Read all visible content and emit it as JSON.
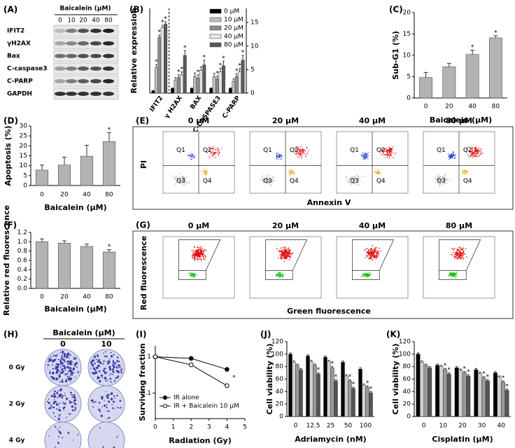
{
  "chart_data": [
    {
      "panel": "(B)",
      "type": "bar",
      "ylabel": "Relative expression",
      "categories": [
        "IFIT2",
        "γ H2AX",
        "BAX",
        "C-CASPASE3",
        "C-PARP"
      ],
      "axis_by_category": [
        "y",
        "y2",
        "y2",
        "y2",
        "y2"
      ],
      "ylim": [
        0,
        35
      ],
      "y2lim": [
        0,
        18
      ],
      "y2ticks": [
        0,
        5,
        10,
        15
      ],
      "legend": "upper right",
      "series": [
        {
          "name": "0 μM",
          "color": "#000000",
          "values": [
            1,
            1,
            1,
            1,
            1
          ],
          "errors": [
            0.1,
            0.1,
            0.1,
            0.1,
            0.1
          ]
        },
        {
          "name": "10 μM",
          "color": "#bdbdbd",
          "values": [
            10.5,
            2.8,
            3.5,
            3.5,
            2.5
          ],
          "errors": [
            1.2,
            0.5,
            0.8,
            0.7,
            0.5
          ],
          "sig": [
            "*",
            null,
            null,
            null,
            null
          ]
        },
        {
          "name": "20 μM",
          "color": "#8c8c8c",
          "values": [
            23,
            3.3,
            3.2,
            3,
            3.5
          ],
          "errors": [
            1,
            0.6,
            0.7,
            0.6,
            0.6
          ],
          "sig": [
            "*",
            "*",
            "*",
            "*",
            "*"
          ]
        },
        {
          "name": "40 μM",
          "color": "#e6e6e6",
          "values": [
            27,
            3.8,
            4.8,
            4.5,
            4.5
          ],
          "errors": [
            1,
            0.7,
            0.8,
            0.8,
            0.7
          ],
          "sig": [
            "*",
            "*",
            null,
            "*",
            "*"
          ]
        },
        {
          "name": "80 μM",
          "color": "#5a5a5a",
          "values": [
            28.5,
            8,
            6,
            5.8,
            7
          ],
          "errors": [
            1,
            1,
            1,
            1,
            1
          ],
          "sig": [
            "*",
            "*",
            "*",
            "*",
            "*"
          ]
        }
      ]
    },
    {
      "panel": "(C)",
      "type": "bar",
      "categories": [
        "0",
        "20",
        "40",
        "80"
      ],
      "values": [
        4.8,
        7.3,
        10.2,
        14.1
      ],
      "errors": [
        1.2,
        0.8,
        1.0,
        0.5
      ],
      "sig": [
        null,
        null,
        "*",
        "*"
      ],
      "color": "#b3b3b3",
      "ylim": [
        0,
        20
      ],
      "yticks": [
        0,
        5,
        10,
        15,
        20
      ],
      "xlabel": "Baicalein (μM)",
      "ylabel": "Sub-G1 (%)"
    },
    {
      "panel": "(D)",
      "type": "bar",
      "categories": [
        "0",
        "20",
        "40",
        "80"
      ],
      "values": [
        7.8,
        10.3,
        14.8,
        22.2
      ],
      "errors": [
        2.5,
        4,
        5.5,
        4.5
      ],
      "sig": [
        null,
        null,
        null,
        "*"
      ],
      "color": "#b3b3b3",
      "ylim": [
        0,
        30
      ],
      "yticks": [
        0,
        5,
        10,
        15,
        20,
        25,
        30
      ],
      "xlabel": "Baicalein (μM)",
      "ylabel": "Apoptosis (%)"
    },
    {
      "panel": "(F)",
      "type": "bar",
      "categories": [
        "0",
        "20",
        "40",
        "80"
      ],
      "values": [
        1.0,
        0.97,
        0.9,
        0.78
      ],
      "errors": [
        0.06,
        0.05,
        0.05,
        0.05
      ],
      "sig": [
        null,
        null,
        null,
        "*"
      ],
      "color": "#b3b3b3",
      "ylim": [
        0,
        1.2
      ],
      "yticks": [
        {
          "value": 0,
          "label": "0.0"
        },
        0.2,
        0.4,
        0.6,
        0.8,
        {
          "value": 1,
          "label": "1.0"
        },
        1.2
      ],
      "xlabel": "Baicalein (μM)",
      "ylabel": "Relative red fluorescence"
    },
    {
      "panel": "(I)",
      "type": "line",
      "x": [
        0,
        2,
        4
      ],
      "xlim": [
        0,
        5
      ],
      "xticks": [
        0,
        1,
        2,
        3,
        4,
        5
      ],
      "ylim": [
        0.02,
        2
      ],
      "yticks": [
        0.1,
        1
      ],
      "ylog": true,
      "legend": "lower left",
      "xlabel": "Radiation (Gy)",
      "ylabel": "Surviving fraction",
      "series": [
        {
          "name": "IR alone",
          "color": "#000000",
          "marker_fill": "#000000",
          "values": [
            1,
            0.9,
            0.45
          ]
        },
        {
          "name": "IR + Baicalein 10 μM",
          "color": "#000000",
          "marker_fill": "#ffffff",
          "values": [
            1,
            0.6,
            0.16
          ],
          "sig": [
            null,
            null,
            "*"
          ]
        }
      ]
    },
    {
      "panel": "(J)",
      "type": "bar",
      "categories": [
        "0",
        "12.5",
        "25",
        "50",
        "100"
      ],
      "ylim": [
        0,
        120
      ],
      "yticks": [
        0,
        20,
        40,
        60,
        80,
        100,
        120
      ],
      "xlabel": "Adriamycin (nM)",
      "ylabel": "Cell viability (%)",
      "series": [
        {
          "color": "#000000",
          "values": [
            100,
            97,
            95,
            87,
            76
          ],
          "errors": [
            2,
            2,
            2,
            2,
            2
          ]
        },
        {
          "color": "#d0d0d0",
          "values": [
            87,
            88,
            88,
            65,
            50
          ],
          "errors": [
            2,
            2,
            2,
            2,
            2
          ]
        },
        {
          "color": "#9a9a9a",
          "values": [
            82,
            82,
            78,
            57,
            47
          ],
          "errors": [
            2,
            2,
            2,
            2,
            2
          ],
          "sig": [
            null,
            null,
            "*",
            "*",
            "*"
          ]
        },
        {
          "color": "#555555",
          "values": [
            75,
            68,
            57,
            45,
            38
          ],
          "errors": [
            2,
            2,
            2,
            2,
            2
          ],
          "sig": [
            null,
            "*",
            "*",
            "*",
            "*"
          ]
        }
      ]
    },
    {
      "panel": "(K)",
      "type": "bar",
      "categories": [
        "0",
        "10",
        "20",
        "30",
        "40"
      ],
      "ylim": [
        0,
        120
      ],
      "yticks": [
        0,
        20,
        40,
        60,
        80,
        100,
        120
      ],
      "xlabel": "Cisplatin (μM)",
      "ylabel": "Cell viability (%)",
      "series": [
        {
          "color": "#000000",
          "values": [
            100,
            82,
            78,
            75,
            70
          ],
          "errors": [
            2,
            2,
            2,
            2,
            2
          ]
        },
        {
          "color": "#d0d0d0",
          "values": [
            87,
            80,
            74,
            69,
            63
          ],
          "errors": [
            2,
            2,
            2,
            2,
            2
          ]
        },
        {
          "color": "#9a9a9a",
          "values": [
            82,
            75,
            70,
            62,
            55
          ],
          "errors": [
            2,
            2,
            2,
            2,
            2
          ],
          "sig": [
            null,
            "*",
            "*",
            "*",
            "*"
          ]
        },
        {
          "color": "#555555",
          "values": [
            78,
            68,
            65,
            57,
            42
          ],
          "errors": [
            2,
            2,
            2,
            2,
            2
          ],
          "sig": [
            null,
            "*",
            "*",
            "*",
            "*"
          ]
        }
      ]
    }
  ],
  "blot": {
    "panel": "(A)",
    "header": "Baicalein (μM)",
    "doses": [
      "0",
      "10",
      "20",
      "40",
      "80"
    ],
    "proteins": [
      "IFIT2",
      "γH2AX",
      "Bax",
      "C-caspase3",
      "C-PARP",
      "GAPDH"
    ]
  },
  "flow_annexin": {
    "panel": "(E)",
    "doses": [
      "0 μM",
      "20 μM",
      "40 μM",
      "80 μM"
    ],
    "ylabel": "PI",
    "xlabel": "Annexin V",
    "quadrants": [
      "Q1",
      "Q2",
      "Q3",
      "Q4"
    ]
  },
  "flow_red": {
    "panel": "(G)",
    "doses": [
      "0 μM",
      "20 μM",
      "40 μM",
      "80 μM"
    ],
    "ylabel": "Red fluorescence",
    "xlabel": "Green fluorescence"
  },
  "colony": {
    "panel": "(H)",
    "header": "Baicalein (μM)",
    "doses": [
      "0",
      "10"
    ],
    "rows": [
      "0 Gy",
      "2 Gy",
      "4 Gy"
    ]
  }
}
